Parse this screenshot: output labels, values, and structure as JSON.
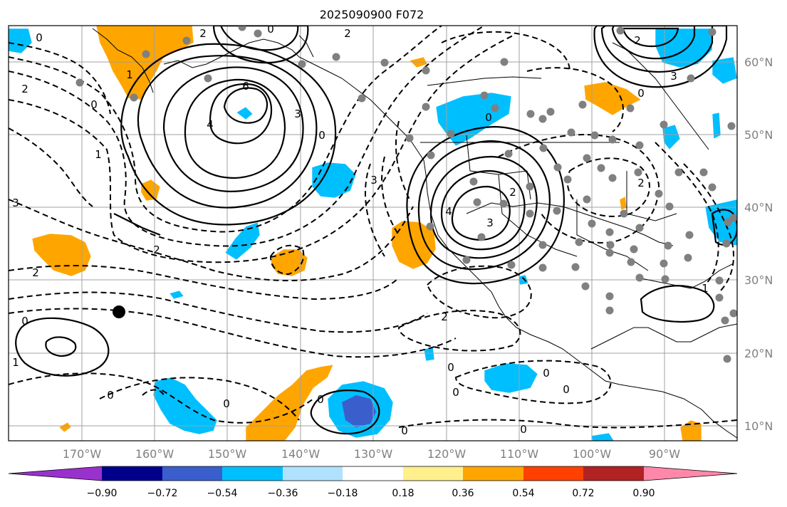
{
  "title": "2025090900 F072",
  "map": {
    "lat_labels": [
      "60°N",
      "50°N",
      "40°N",
      "30°N",
      "20°N",
      "10°N"
    ],
    "lon_labels": [
      "170°W",
      "160°W",
      "150°W",
      "140°W",
      "130°W",
      "120°W",
      "110°W",
      "100°W",
      "90°W"
    ],
    "contour_labels": [
      "0",
      "2",
      "1",
      "2",
      "0",
      "6",
      "3",
      "4",
      "2",
      "0",
      "1",
      "3",
      "2",
      "3",
      "0",
      "2",
      "0",
      "2",
      "3",
      "4",
      "3",
      "0",
      "2",
      "2",
      "1",
      "0",
      "0",
      "0",
      "0",
      "0",
      "0",
      "0",
      "2",
      "0",
      "0",
      "0",
      "1"
    ]
  },
  "colorbar": {
    "tick_labels": [
      "−0.90",
      "−0.72",
      "−0.54",
      "−0.36",
      "−0.18",
      "0.18",
      "0.36",
      "0.54",
      "0.72",
      "0.90"
    ],
    "colors": [
      "#9932cc",
      "#00008b",
      "#3a5fcd",
      "#00bfff",
      "#b0e2ff",
      "#ffffff",
      "#fff08c",
      "#ffa500",
      "#ff4000",
      "#b22222",
      "#ff88aa"
    ]
  },
  "colors": {
    "positive_fill": "#ffa500",
    "negative_fill": "#00bfff",
    "strong_negative_fill": "#3a5fcd",
    "station_dot": "#808080",
    "grid": "#a0a0a0"
  }
}
